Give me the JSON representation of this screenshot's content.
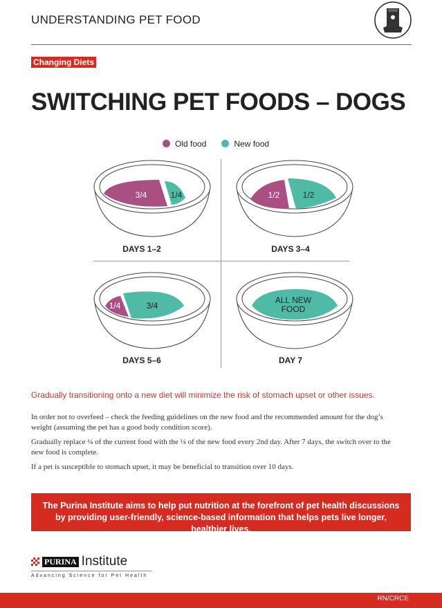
{
  "header": {
    "title": "UNDERSTANDING PET FOOD",
    "icon": "pet-food-bag-icon"
  },
  "tag": "Changing Diets",
  "title": "SWITCHING PET FOODS – DOGS",
  "legend": {
    "old": "Old food",
    "new": "New food"
  },
  "colors": {
    "old": "#a94f82",
    "new": "#4fbba6",
    "accent": "#d62b20"
  },
  "bowls": [
    {
      "label": "DAYS 1–2",
      "old": "3/4",
      "new": "1/4"
    },
    {
      "label": "DAYS 3–4",
      "old": "1/2",
      "new": "1/2"
    },
    {
      "label": "DAYS 5–6",
      "old": "1/4",
      "new": "3/4"
    },
    {
      "label": "DAY 7",
      "new_line1": "ALL NEW",
      "new_line2": "FOOD"
    }
  ],
  "message": "Gradually transitioning onto a new diet will minimize the risk of stomach upset or other issues.",
  "paragraphs": [
    "In order not to overfeed – check the feeding guidelines on the new food and the recommended amount for the dog’s weight (assuming the pet has a good body condition score).",
    "Gradually replace ¼ of the current food with the ¼ of the new food every 2nd day. After 7 days, the switch over to the new food is complete.",
    "If a pet is susceptible to stomach upset, it may be beneficial to transition over 10 days."
  ],
  "banner": "The Purina Institute aims to help put nutrition at the forefront of pet health discussions by providing user-friendly, science-based information that helps pets live longer, healthier lives.",
  "logo": {
    "brand": "PURINA",
    "name": "Institute",
    "tagline": "Advancing Science for Pet Health"
  },
  "footer_code": "RN/CRCE"
}
